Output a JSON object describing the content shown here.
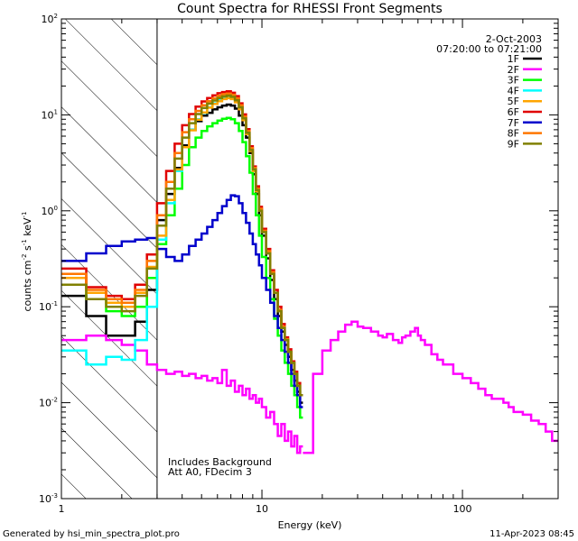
{
  "footer": {
    "generated_by": "Generated by hsi_min_spectra_plot.pro",
    "timestamp": "11-Apr-2023 08:45"
  },
  "chart_data": {
    "type": "line",
    "title": "Count Spectra for RHESSI Front Segments",
    "xlabel": "Energy (keV)",
    "ylabel": "counts cm^-2 s^-1 keV^-1",
    "x_scale": "log",
    "y_scale": "log",
    "xlim": [
      1,
      300
    ],
    "ylim": [
      0.001,
      100
    ],
    "x_ticks": [
      {
        "value": 1,
        "label": "1"
      },
      {
        "value": 10,
        "label": "10"
      },
      {
        "value": 100,
        "label": "100"
      }
    ],
    "y_ticks": [
      {
        "value": 100,
        "base": "10",
        "exp": "2"
      },
      {
        "value": 10,
        "base": "10",
        "exp": "1"
      },
      {
        "value": 1,
        "base": "10",
        "exp": "0"
      },
      {
        "value": 0.1,
        "base": "10",
        "exp": "-1"
      },
      {
        "value": 0.01,
        "base": "10",
        "exp": "-2"
      },
      {
        "value": 0.001,
        "base": "10",
        "exp": "-3"
      }
    ],
    "date": "2-Oct-2003",
    "time_range": "07:20:00 to 07:21:00",
    "annotations": [
      "Includes Background",
      "Att A0, FDecim 3"
    ],
    "hatched_region": {
      "from": 1,
      "to": 3
    },
    "energy_bins": [
      1.0,
      1.33,
      1.67,
      2.0,
      2.33,
      2.67,
      3.0,
      3.33,
      3.67,
      4.0,
      4.33,
      4.67,
      5.0,
      5.33,
      5.67,
      6.0,
      6.33,
      6.67,
      7.0,
      7.33,
      7.67,
      8.0,
      8.33,
      8.67,
      9.0,
      9.33,
      9.67,
      10.0,
      10.5,
      11.0,
      11.5,
      12.0,
      12.5,
      13.0,
      13.5,
      14.0,
      14.5,
      15.0,
      15.5,
      16.0
    ],
    "series": [
      {
        "name": "1F",
        "color": "#000000",
        "values": [
          0.13,
          0.08,
          0.05,
          0.05,
          0.07,
          0.15,
          0.8,
          1.5,
          2.8,
          4.8,
          7.0,
          8.6,
          9.8,
          10.5,
          11.4,
          12.0,
          12.5,
          12.8,
          12.5,
          11.6,
          9.8,
          7.8,
          5.8,
          4.0,
          2.4,
          1.5,
          0.9,
          0.55,
          0.32,
          0.19,
          0.12,
          0.08,
          0.055,
          0.04,
          0.03,
          0.022,
          0.017,
          0.013,
          0.01
        ]
      },
      {
        "name": "2F",
        "color": "#ff00ff",
        "values": [
          0.045,
          0.05,
          0.045,
          0.04,
          0.035,
          0.025,
          0.022,
          0.02,
          0.021,
          0.019,
          0.02,
          0.018,
          0.019,
          0.017,
          0.018,
          0.016,
          0.022,
          0.015,
          0.017,
          0.013,
          0.015,
          0.012,
          0.014,
          0.011,
          0.012,
          0.01,
          0.011,
          0.009,
          0.007,
          0.008,
          0.006,
          0.0045,
          0.006,
          0.004,
          0.005,
          0.0035,
          0.0045,
          0.003,
          0.0035
        ]
      },
      {
        "name": "3F",
        "color": "#00ff00",
        "values": [
          0.2,
          0.12,
          0.09,
          0.08,
          0.1,
          0.2,
          0.45,
          0.9,
          1.7,
          3.0,
          4.6,
          5.8,
          6.8,
          7.6,
          8.2,
          8.7,
          9.1,
          9.3,
          9.0,
          8.2,
          6.8,
          5.2,
          3.7,
          2.5,
          1.5,
          0.9,
          0.55,
          0.33,
          0.2,
          0.12,
          0.075,
          0.05,
          0.035,
          0.026,
          0.02,
          0.015,
          0.012,
          0.009,
          0.007
        ]
      },
      {
        "name": "4F",
        "color": "#00ffff",
        "values": [
          0.035,
          0.025,
          0.03,
          0.028,
          0.045,
          0.1,
          0.5,
          1.2,
          2.6,
          4.6,
          7.0,
          9.0,
          10.5,
          12.0,
          13.2,
          14.3,
          15.1,
          15.6,
          15.3,
          14.2,
          12.0,
          9.0,
          6.4,
          4.3,
          2.6,
          1.6,
          1.0,
          0.6,
          0.36,
          0.22,
          0.14,
          0.09,
          0.06,
          0.045,
          0.034,
          0.026,
          0.02,
          0.016,
          0.012
        ]
      },
      {
        "name": "5F",
        "color": "#ffa500",
        "values": [
          0.2,
          0.14,
          0.11,
          0.1,
          0.14,
          0.26,
          0.55,
          1.3,
          2.7,
          4.6,
          6.9,
          8.9,
          10.6,
          11.9,
          13.0,
          13.9,
          14.6,
          15.0,
          14.6,
          13.5,
          11.4,
          8.8,
          6.3,
          4.2,
          2.6,
          1.6,
          1.0,
          0.6,
          0.36,
          0.22,
          0.14,
          0.09,
          0.06,
          0.045,
          0.034,
          0.026,
          0.02,
          0.016,
          0.012
        ]
      },
      {
        "name": "6F",
        "color": "#e00000",
        "values": [
          0.25,
          0.16,
          0.13,
          0.12,
          0.17,
          0.35,
          1.2,
          2.6,
          5.0,
          7.8,
          10.2,
          12.2,
          13.8,
          15.0,
          16.0,
          16.8,
          17.3,
          17.6,
          17.0,
          15.7,
          13.2,
          10.1,
          7.1,
          4.7,
          2.9,
          1.8,
          1.1,
          0.65,
          0.4,
          0.24,
          0.15,
          0.1,
          0.066,
          0.048,
          0.036,
          0.027,
          0.021,
          0.016,
          0.012
        ]
      },
      {
        "name": "7F",
        "color": "#0000cc",
        "values": [
          0.3,
          0.36,
          0.43,
          0.48,
          0.5,
          0.52,
          0.4,
          0.33,
          0.3,
          0.35,
          0.43,
          0.5,
          0.58,
          0.68,
          0.8,
          0.95,
          1.12,
          1.3,
          1.45,
          1.42,
          1.2,
          0.95,
          0.75,
          0.58,
          0.45,
          0.35,
          0.27,
          0.2,
          0.15,
          0.11,
          0.08,
          0.06,
          0.045,
          0.034,
          0.026,
          0.02,
          0.015,
          0.012,
          0.009
        ]
      },
      {
        "name": "8F",
        "color": "#ff7700",
        "values": [
          0.22,
          0.15,
          0.12,
          0.11,
          0.15,
          0.3,
          0.9,
          2.0,
          4.0,
          6.6,
          9.0,
          11.0,
          12.6,
          13.9,
          14.9,
          15.8,
          16.4,
          16.7,
          16.2,
          14.9,
          12.6,
          9.6,
          6.8,
          4.5,
          2.8,
          1.7,
          1.05,
          0.62,
          0.38,
          0.23,
          0.14,
          0.093,
          0.062,
          0.046,
          0.034,
          0.026,
          0.02,
          0.015,
          0.012
        ]
      },
      {
        "name": "9F",
        "color": "#808000",
        "values": [
          0.17,
          0.12,
          0.1,
          0.09,
          0.13,
          0.25,
          0.7,
          1.7,
          3.5,
          5.8,
          8.2,
          10.2,
          11.8,
          13.1,
          14.1,
          15.0,
          15.6,
          15.9,
          15.4,
          14.2,
          12.0,
          9.2,
          6.5,
          4.3,
          2.7,
          1.65,
          1.0,
          0.6,
          0.36,
          0.22,
          0.14,
          0.09,
          0.06,
          0.045,
          0.034,
          0.026,
          0.02,
          0.015,
          0.012
        ]
      }
    ],
    "magenta_continuum": {
      "series": "2F",
      "energies": [
        16,
        18,
        20,
        22,
        24,
        26,
        28,
        30,
        32,
        35,
        38,
        40,
        42,
        45,
        48,
        50,
        52,
        55,
        58,
        60,
        62,
        65,
        70,
        75,
        80,
        90,
        100,
        110,
        120,
        130,
        140,
        150,
        160,
        170,
        180,
        200,
        220,
        240,
        260,
        280,
        300
      ],
      "values": [
        0.003,
        0.02,
        0.035,
        0.045,
        0.055,
        0.065,
        0.07,
        0.062,
        0.06,
        0.055,
        0.05,
        0.048,
        0.052,
        0.045,
        0.042,
        0.048,
        0.05,
        0.055,
        0.06,
        0.05,
        0.045,
        0.04,
        0.032,
        0.028,
        0.025,
        0.02,
        0.018,
        0.016,
        0.014,
        0.012,
        0.011,
        0.011,
        0.01,
        0.009,
        0.008,
        0.0075,
        0.0065,
        0.006,
        0.005,
        0.004,
        0.003
      ]
    }
  }
}
